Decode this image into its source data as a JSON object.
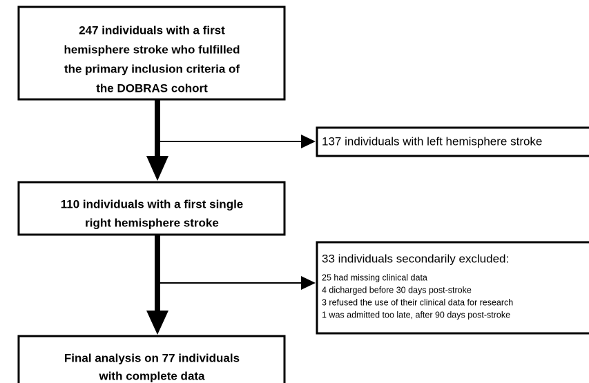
{
  "nodes": [
    {
      "lines": [
        "247 individuals with a first",
        "hemisphere stroke who fulfilled",
        "the primary inclusion criteria of",
        "the DOBRAS cohort"
      ]
    },
    {
      "lines": [
        "137 individuals with left hemisphere stroke"
      ]
    },
    {
      "lines": [
        "110 individuals with a first single",
        "right hemisphere stroke"
      ]
    },
    {
      "title": "33 individuals secondarily excluded:",
      "lines": [
        "25 had missing clinical data",
        "4 dicharged before 30 days post-stroke",
        "3 refused the use of their clinical data for research",
        "1 was admitted too late, after 90 days post-stroke"
      ]
    },
    {
      "lines": [
        "Final analysis on 77 individuals",
        "with complete data"
      ]
    }
  ]
}
